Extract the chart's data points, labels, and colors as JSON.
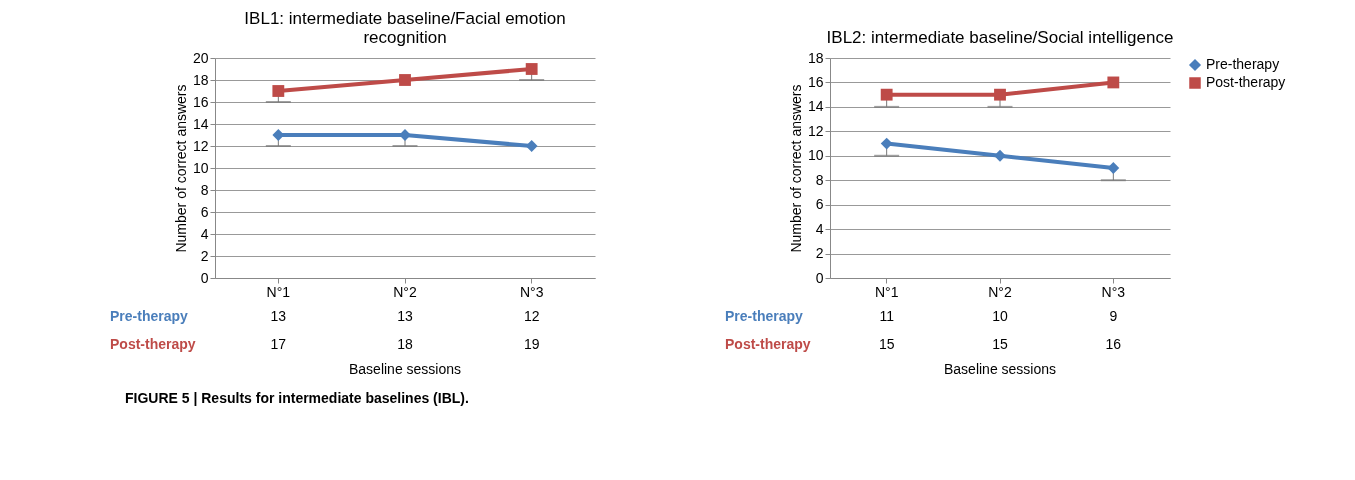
{
  "chart_data": [
    {
      "type": "line",
      "title": "IBL1: intermediate baseline/Facial emotion recognition",
      "xlabel": "Baseline sessions",
      "ylabel": "Number of correct answers",
      "categories": [
        "N°1",
        "N°2",
        "N°3"
      ],
      "series": [
        {
          "name": "Pre-therapy",
          "color": "#4a7ebb",
          "marker": "diamond",
          "values": [
            13,
            13,
            12
          ],
          "errors": [
            [
              12,
              13
            ],
            [
              12,
              13
            ],
            null
          ]
        },
        {
          "name": "Post-therapy",
          "color": "#be4b48",
          "marker": "square",
          "values": [
            17,
            18,
            19
          ],
          "errors": [
            [
              16,
              17
            ],
            null,
            [
              18,
              19
            ]
          ]
        }
      ],
      "ylim": [
        0,
        20
      ],
      "yticks": [
        0,
        2,
        4,
        6,
        8,
        10,
        12,
        14,
        16,
        18,
        20
      ],
      "grid": "y",
      "legend": false,
      "data_labels": true,
      "annotations": [
        "FIGURE 5 | Results for intermediate baselines (IBL)."
      ]
    },
    {
      "type": "line",
      "title": "IBL2: intermediate baseline/Social intelligence",
      "xlabel": "Baseline sessions",
      "ylabel": "Number of correct answers",
      "categories": [
        "N°1",
        "N°2",
        "N°3"
      ],
      "series": [
        {
          "name": "Pre-therapy",
          "color": "#4a7ebb",
          "marker": "diamond",
          "values": [
            11,
            10,
            9
          ],
          "errors": [
            [
              10,
              11
            ],
            null,
            [
              8,
              9
            ]
          ]
        },
        {
          "name": "Post-therapy",
          "color": "#be4b48",
          "marker": "square",
          "values": [
            15,
            15,
            16
          ],
          "errors": [
            [
              14,
              15
            ],
            [
              14,
              15
            ],
            null
          ]
        }
      ],
      "ylim": [
        0,
        18
      ],
      "yticks": [
        0,
        2,
        4,
        6,
        8,
        10,
        12,
        14,
        16,
        18
      ],
      "grid": "y",
      "legend": "right",
      "data_labels": true
    }
  ]
}
